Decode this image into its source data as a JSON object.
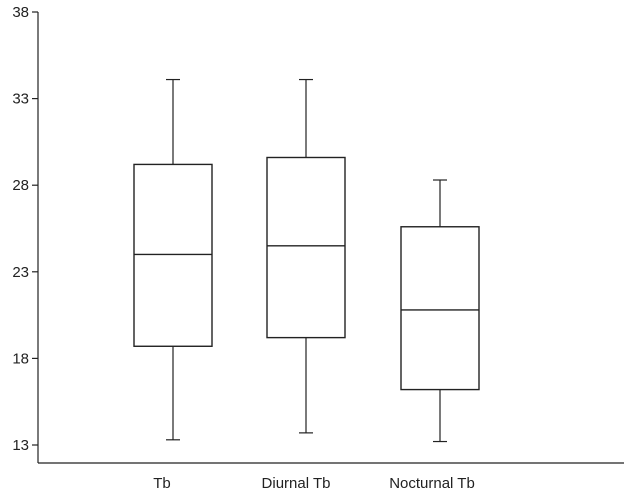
{
  "chart_data": {
    "type": "boxplot",
    "title": "",
    "xlabel": "",
    "ylabel": "",
    "ylim": [
      12,
      38
    ],
    "yticks": [
      13,
      18,
      23,
      28,
      33,
      38
    ],
    "categories": [
      "Tb",
      "Diurnal Tb",
      "Nocturnal Tb"
    ],
    "series": [
      {
        "category": "Tb",
        "whisker_low": 13.3,
        "q1": 18.7,
        "median": 24.0,
        "q3": 29.2,
        "whisker_high": 34.1
      },
      {
        "category": "Diurnal Tb",
        "whisker_low": 13.7,
        "q1": 19.2,
        "median": 24.5,
        "q3": 29.6,
        "whisker_high": 34.1
      },
      {
        "category": "Nocturnal Tb",
        "whisker_low": 13.2,
        "q1": 16.2,
        "median": 20.8,
        "q3": 25.6,
        "whisker_high": 28.3
      }
    ],
    "grid": false,
    "legend": "none"
  }
}
